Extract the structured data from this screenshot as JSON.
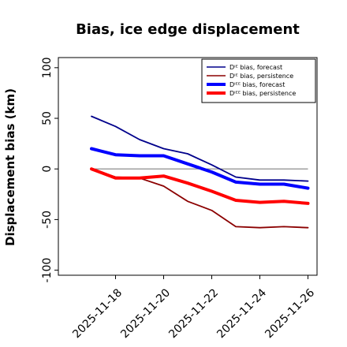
{
  "chart_data": {
    "type": "line",
    "title": "Bias, ice edge displacement",
    "xlabel": "",
    "ylabel": "Displacement bias (km)",
    "x": [
      "2025-11-17",
      "2025-11-18",
      "2025-11-19",
      "2025-11-20",
      "2025-11-21",
      "2025-11-22",
      "2025-11-23",
      "2025-11-24",
      "2025-11-25",
      "2025-11-26"
    ],
    "xticks": [
      "2025-11-18",
      "2025-11-20",
      "2025-11-22",
      "2025-11-24",
      "2025-11-26"
    ],
    "highlighted_xtick": "2025-11-18",
    "highlight_color": "#228b22",
    "ylim": [
      -105,
      110
    ],
    "yticks": [
      -100,
      -50,
      0,
      50,
      100
    ],
    "zero_line": true,
    "grid": false,
    "legend_position": "top-right",
    "series": [
      {
        "name": "Dᴵᴱ bias, forecast",
        "color": "#00008b",
        "width": "thin",
        "values": [
          52,
          42,
          29,
          20,
          15,
          4,
          -8,
          -11,
          -11,
          -12
        ]
      },
      {
        "name": "Dᴵᴱ bias, persistence",
        "color": "#8b0000",
        "width": "thin",
        "values": [
          0,
          -8,
          -9,
          -17,
          -32,
          -41,
          -57,
          -58,
          -57,
          -58
        ]
      },
      {
        "name": "Dᴵᴱᴱ bias, forecast",
        "color": "#0000ff",
        "width": "thick",
        "values": [
          20,
          14,
          13,
          13,
          5,
          -3,
          -13,
          -15,
          -15,
          -19
        ]
      },
      {
        "name": "Dᴵᴱᴱ bias, persistence",
        "color": "#ff0000",
        "width": "thick",
        "values": [
          0,
          -9,
          -9,
          -7,
          -14,
          -22,
          -31,
          -33,
          -32,
          -34
        ]
      }
    ]
  }
}
